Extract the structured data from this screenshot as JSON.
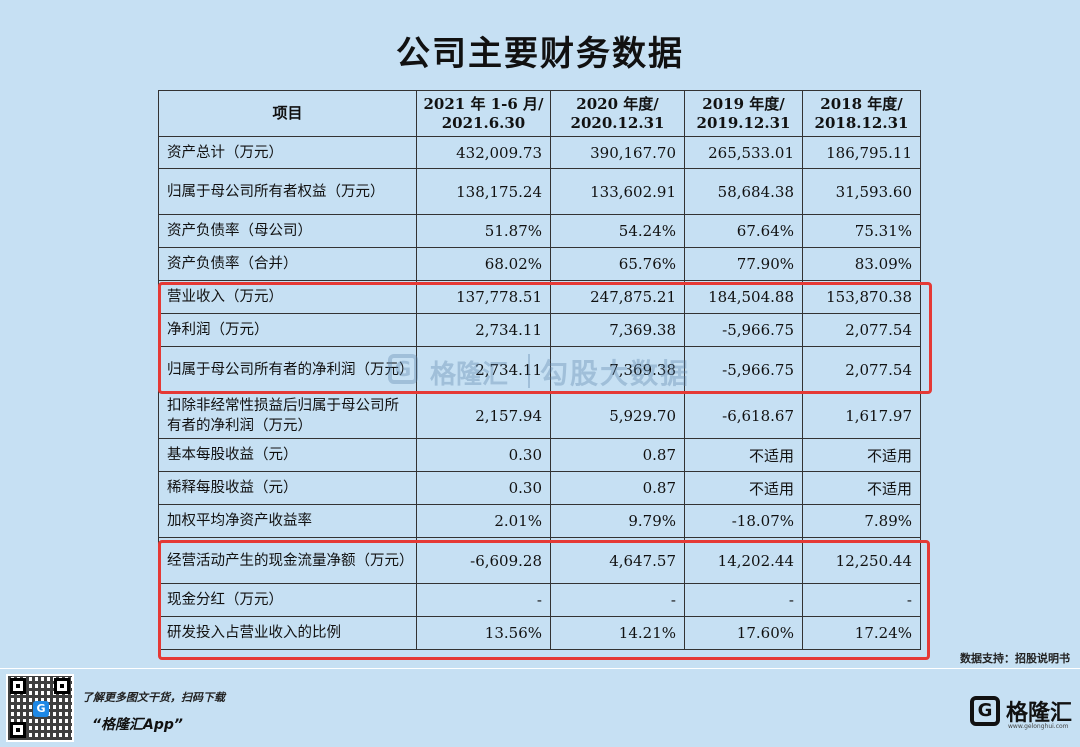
{
  "page": {
    "title": "公司主要财务数据",
    "source": "数据支持：招股说明书",
    "watermark_brand": "格隆汇",
    "watermark_data": "勾股大数据"
  },
  "table": {
    "headers": [
      "项目",
      "2021 年 1-6 月/2021.6.30",
      "2020 年度/2020.12.31",
      "2019 年度/2019.12.31",
      "2018 年度/2018.12.31"
    ],
    "rows": [
      {
        "label": "资产总计（万元）",
        "values": [
          "432,009.73",
          "390,167.70",
          "265,533.01",
          "186,795.11"
        ]
      },
      {
        "label": "归属于母公司所有者权益（万元）",
        "values": [
          "138,175.24",
          "133,602.91",
          "58,684.38",
          "31,593.60"
        ]
      },
      {
        "label": "资产负债率（母公司）",
        "values": [
          "51.87%",
          "54.24%",
          "67.64%",
          "75.31%"
        ]
      },
      {
        "label": "资产负债率（合并）",
        "values": [
          "68.02%",
          "65.76%",
          "77.90%",
          "83.09%"
        ]
      },
      {
        "label": "营业收入（万元）",
        "values": [
          "137,778.51",
          "247,875.21",
          "184,504.88",
          "153,870.38"
        ]
      },
      {
        "label": "净利润（万元）",
        "values": [
          "2,734.11",
          "7,369.38",
          "-5,966.75",
          "2,077.54"
        ]
      },
      {
        "label": "归属于母公司所有者的净利润（万元）",
        "values": [
          "2,734.11",
          "7,369.38",
          "-5,966.75",
          "2,077.54"
        ]
      },
      {
        "label": "扣除非经常性损益后归属于母公司所有者的净利润（万元）",
        "values": [
          "2,157.94",
          "5,929.70",
          "-6,618.67",
          "1,617.97"
        ]
      },
      {
        "label": "基本每股收益（元）",
        "values": [
          "0.30",
          "0.87",
          "不适用",
          "不适用"
        ]
      },
      {
        "label": "稀释每股收益（元）",
        "values": [
          "0.30",
          "0.87",
          "不适用",
          "不适用"
        ]
      },
      {
        "label": "加权平均净资产收益率",
        "values": [
          "2.01%",
          "9.79%",
          "-18.07%",
          "7.89%"
        ]
      },
      {
        "label": "经营活动产生的现金流量净额（万元）",
        "values": [
          "-6,609.28",
          "4,647.57",
          "14,202.44",
          "12,250.44"
        ]
      },
      {
        "label": "现金分红（万元）",
        "values": [
          "-",
          "-",
          "-",
          "-"
        ]
      },
      {
        "label": "研发投入占营业收入的比例",
        "values": [
          "13.56%",
          "14.21%",
          "17.60%",
          "17.24%"
        ]
      }
    ]
  },
  "footer": {
    "promo_line": "了解更多图文干货，扫码下载",
    "app_name": "“格隆汇App”",
    "brand_name": "格隆汇",
    "brand_url": "www.gelonghui.com",
    "qr_logo": "G",
    "brand_mark": "G"
  },
  "colors": {
    "background": "#c6e0f3",
    "highlight": "#e53935"
  }
}
